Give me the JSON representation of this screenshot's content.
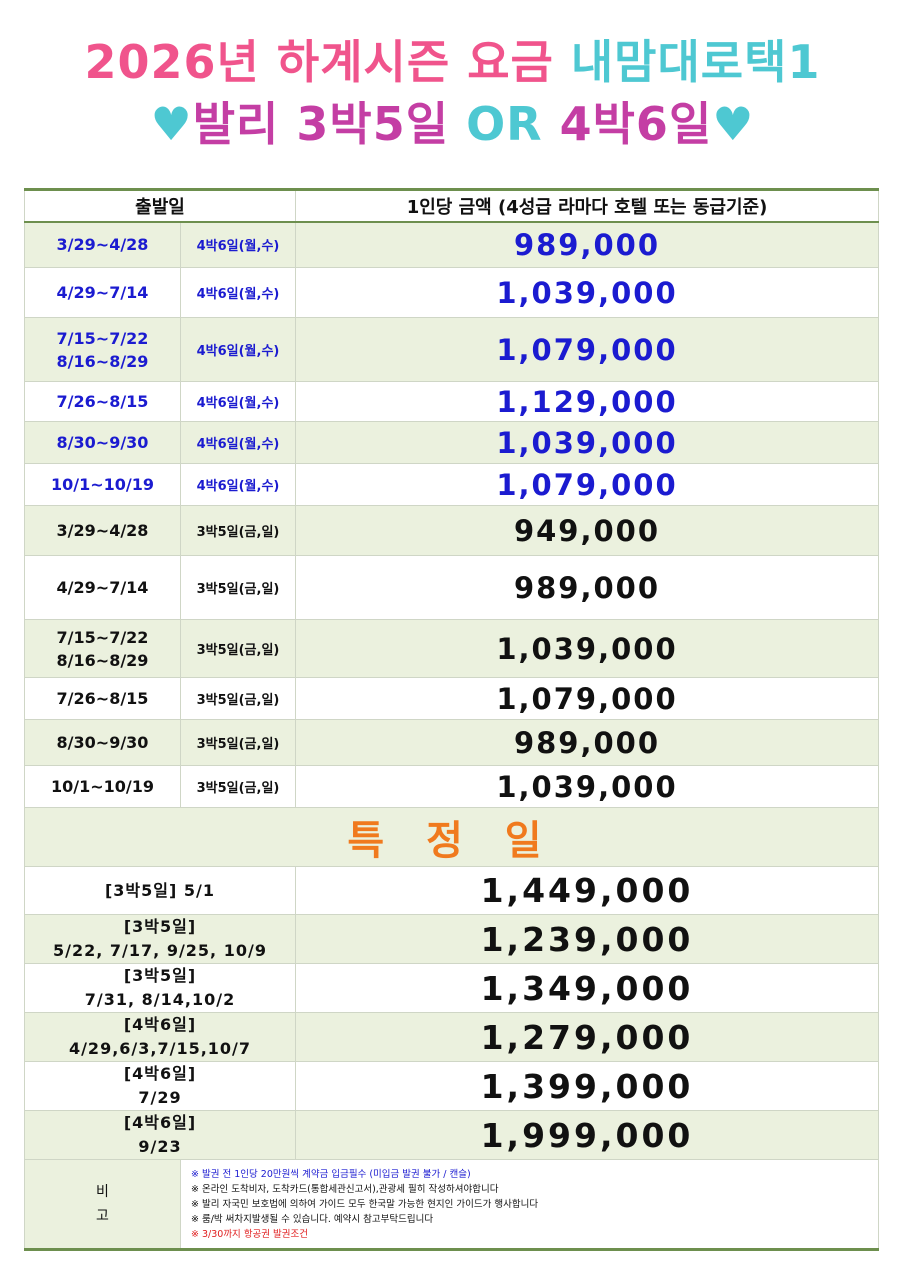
{
  "title": {
    "line1_year": "2026년 하계시즌 요금",
    "line1_brand": "내맘대로택1",
    "line2_heart_left": "♥",
    "line2_bali": "발리",
    "line2_a": "3박5일",
    "line2_or": "OR",
    "line2_b": "4박6일",
    "line2_heart_right": "♥"
  },
  "colors": {
    "pink": "#f0548c",
    "teal": "#4ec8d2",
    "magenta": "#c43ea4",
    "blue_price": "#1b1bd0",
    "orange_special": "#f07a1e",
    "header_rule": "#6d8f4e",
    "row_green": "#ebf1de",
    "note_red": "#e02020"
  },
  "table": {
    "headers": {
      "departure": "출발일",
      "price": "1인당 금액 (4성급 라마다 호텔 또는 동급기준)"
    },
    "rows": [
      {
        "dates": [
          "3/29~4/28"
        ],
        "duration": "4박6일(월,수)",
        "price": "989,000",
        "style": "blue",
        "bg": "green"
      },
      {
        "dates": [
          "4/29~7/14"
        ],
        "duration": "4박6일(월,수)",
        "price": "1,039,000",
        "style": "blue",
        "bg": "white"
      },
      {
        "dates": [
          "7/15~7/22",
          "8/16~8/29"
        ],
        "duration": "4박6일(월,수)",
        "price": "1,079,000",
        "style": "blue",
        "bg": "green"
      },
      {
        "dates": [
          "7/26~8/15"
        ],
        "duration": "4박6일(월,수)",
        "price": "1,129,000",
        "style": "blue",
        "bg": "white"
      },
      {
        "dates": [
          "8/30~9/30"
        ],
        "duration": "4박6일(월,수)",
        "price": "1,039,000",
        "style": "blue",
        "bg": "green"
      },
      {
        "dates": [
          "10/1~10/19"
        ],
        "duration": "4박6일(월,수)",
        "price": "1,079,000",
        "style": "blue",
        "bg": "white"
      },
      {
        "dates": [
          "3/29~4/28"
        ],
        "duration": "3박5일(금,일)",
        "price": "949,000",
        "style": "black",
        "bg": "green"
      },
      {
        "dates": [
          "4/29~7/14"
        ],
        "duration": "3박5일(금,일)",
        "price": "989,000",
        "style": "black",
        "bg": "white"
      },
      {
        "dates": [
          "7/15~7/22",
          "8/16~8/29"
        ],
        "duration": "3박5일(금,일)",
        "price": "1,039,000",
        "style": "black",
        "bg": "green"
      },
      {
        "dates": [
          "7/26~8/15"
        ],
        "duration": "3박5일(금,일)",
        "price": "1,079,000",
        "style": "black",
        "bg": "white"
      },
      {
        "dates": [
          "8/30~9/30"
        ],
        "duration": "3박5일(금,일)",
        "price": "989,000",
        "style": "black",
        "bg": "green"
      },
      {
        "dates": [
          "10/1~10/19"
        ],
        "duration": "3박5일(금,일)",
        "price": "1,039,000",
        "style": "black",
        "bg": "white"
      }
    ],
    "special_heading": "특 정 일",
    "special_rows": [
      {
        "lines": [
          "[3박5일] 5/1"
        ],
        "price": "1,449,000",
        "bg": "white"
      },
      {
        "lines": [
          "[3박5일]",
          "5/22, 7/17, 9/25, 10/9"
        ],
        "price": "1,239,000",
        "bg": "green"
      },
      {
        "lines": [
          "[3박5일]",
          "7/31, 8/14,10/2"
        ],
        "price": "1,349,000",
        "bg": "white"
      },
      {
        "lines": [
          "[4박6일]",
          "4/29,6/3,7/15,10/7"
        ],
        "price": "1,279,000",
        "bg": "green"
      },
      {
        "lines": [
          "[4박6일]",
          "7/29"
        ],
        "price": "1,399,000",
        "bg": "white"
      },
      {
        "lines": [
          "[4박6일]",
          "9/23"
        ],
        "price": "1,999,000",
        "bg": "green"
      }
    ],
    "remarks_label": [
      "비",
      "고"
    ],
    "remarks": [
      {
        "text": "※ 발권 전 1인당 20만원씩 계약금 입금필수 (미입금 발권 불가 / 캔슬)",
        "color": "blue"
      },
      {
        "text": "※ 온라인 도착비자, 도착카드(통합세관신고서),관광세 필히 작성하셔야합니다",
        "color": "black"
      },
      {
        "text": "※ 발리 자국민 보호법에 의하여 가이드 모두 한국말 가능한 현지인 가이드가 행사합니다",
        "color": "black"
      },
      {
        "text": "※ 룸/박 써차지발생될 수 있습니다. 예약시 참고부탁드립니다",
        "color": "black"
      },
      {
        "text": "※ 3/30까지 항공권 발권조건",
        "color": "red"
      }
    ]
  }
}
